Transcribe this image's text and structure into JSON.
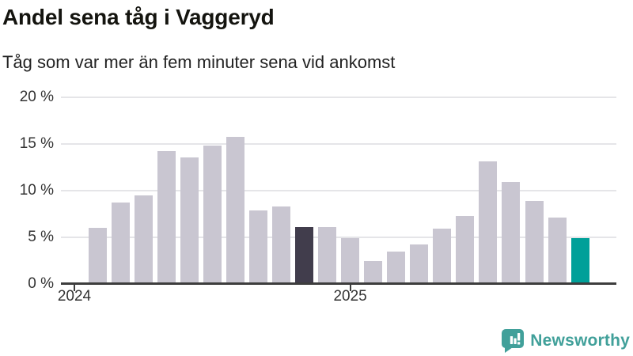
{
  "footer": {
    "brand": "Newsworthy"
  },
  "chart_data": {
    "type": "bar",
    "title": "Andel sena tåg i Vaggeryd",
    "subtitle": "Tåg som var mer än fem minuter sena vid ankomst",
    "xlabel": "",
    "ylabel": "",
    "ylim": [
      0,
      20
    ],
    "grid": "horizontal",
    "legend": "none",
    "y_ticks": [
      {
        "value": 0,
        "label": "0 %"
      },
      {
        "value": 5,
        "label": "5 %"
      },
      {
        "value": 10,
        "label": "10 %"
      },
      {
        "value": 15,
        "label": "15 %"
      },
      {
        "value": 20,
        "label": "20 %"
      }
    ],
    "x_ticks": [
      {
        "label": "2024",
        "slot": 0
      },
      {
        "label": "2025",
        "slot": 12
      }
    ],
    "unit": "%",
    "values": [
      6.0,
      8.7,
      9.5,
      14.2,
      13.6,
      14.8,
      15.8,
      7.9,
      8.3,
      6.1,
      6.1,
      4.9,
      2.5,
      3.5,
      4.2,
      5.9,
      7.3,
      13.1,
      10.9,
      8.9,
      7.1,
      4.9
    ],
    "bar_states": [
      "default",
      "default",
      "default",
      "default",
      "default",
      "default",
      "default",
      "default",
      "default",
      "dark",
      "default",
      "default",
      "default",
      "default",
      "default",
      "default",
      "default",
      "default",
      "default",
      "default",
      "default",
      "accent"
    ],
    "palette": {
      "default": "#c9c6d1",
      "dark": "#413d4c",
      "accent": "#00a099",
      "grid": "#e5e5e8",
      "axis": "#3d3d3d",
      "tick_text": "#333333",
      "logo_teal": "#41a09a"
    }
  }
}
